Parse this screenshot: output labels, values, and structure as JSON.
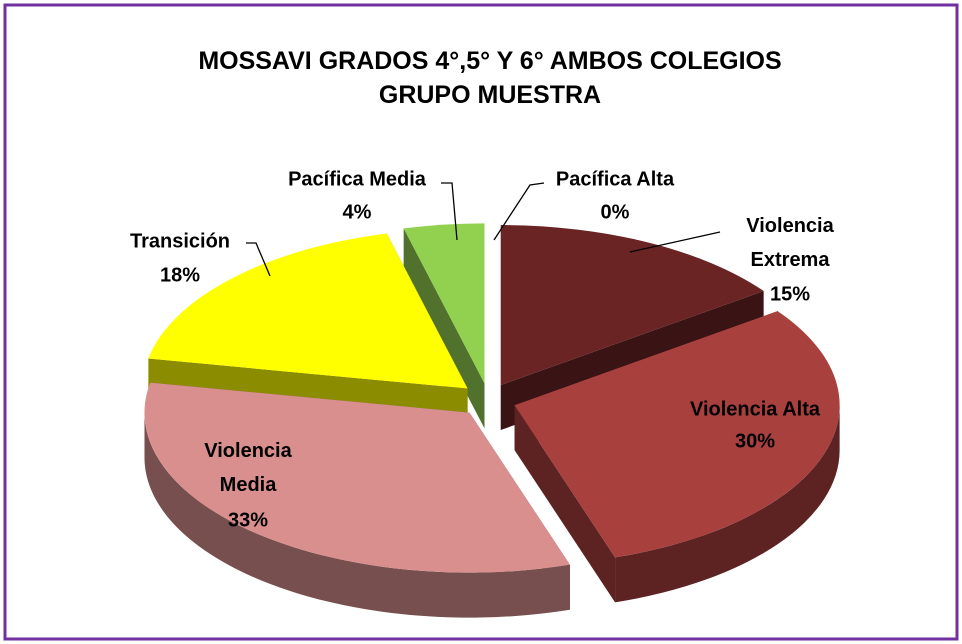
{
  "chart_data": {
    "type": "pie3d",
    "title": "MOSSAVI  GRADOS 4°,5° Y 6° AMBOS COLEGIOS\nGRUPO MUESTRA",
    "categories": [
      "Violencia\nExtrema",
      "Violencia Alta",
      "Violencia\nMedia",
      "Transición",
      "Pacífica Media",
      "Pacífica Alta"
    ],
    "values": [
      15,
      30,
      33,
      18,
      4,
      0
    ],
    "value_labels": [
      "15%",
      "30%",
      "33%",
      "18%",
      "4%",
      "0%"
    ],
    "colors": [
      "#6a2424",
      "#a8403e",
      "#d98f8e",
      "#ffff00",
      "#92d050",
      "#4f81bd"
    ]
  }
}
